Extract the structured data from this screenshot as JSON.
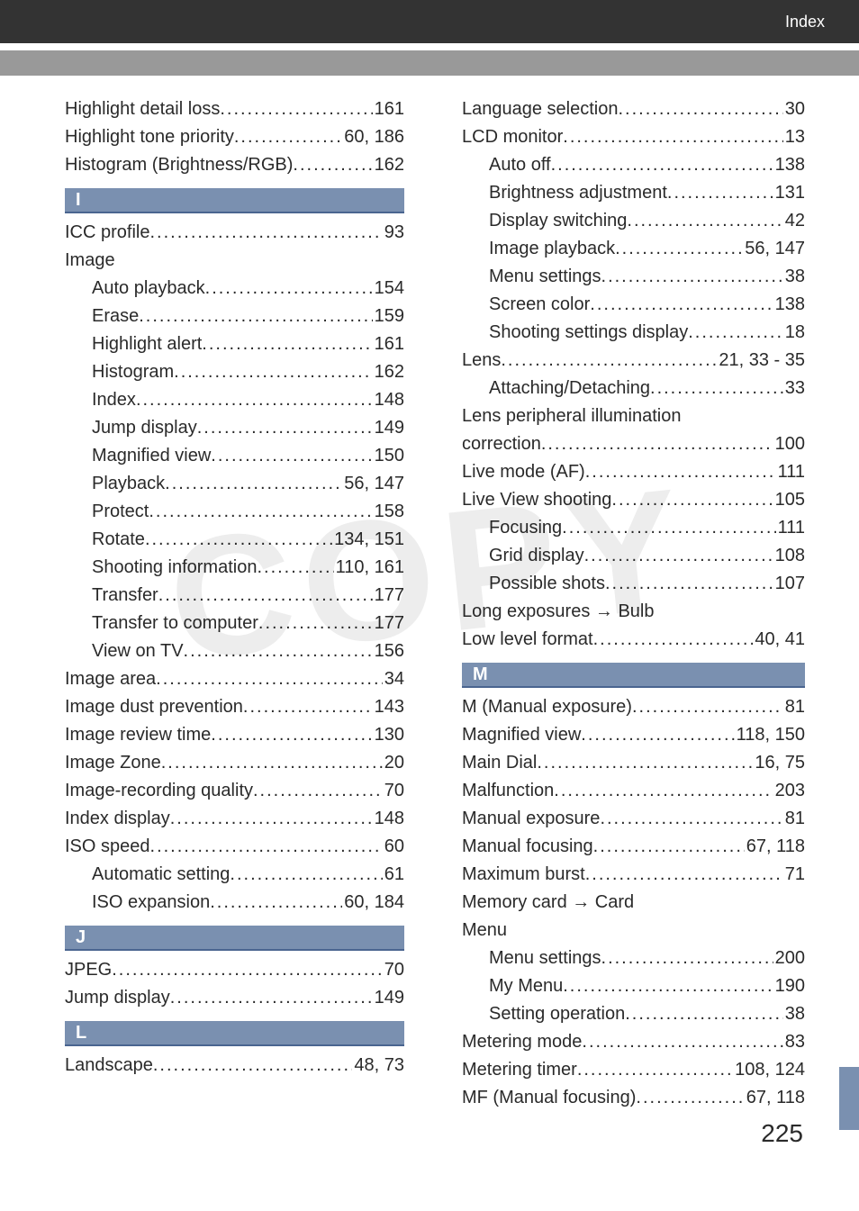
{
  "header": {
    "title": "Index"
  },
  "pageNumber": "225",
  "watermark": "COPY",
  "sections": {
    "I": "I",
    "J": "J",
    "L": "L",
    "M": "M"
  },
  "left": {
    "pre": [
      {
        "label": "Highlight detail loss",
        "pages": "161"
      },
      {
        "label": "Highlight tone priority",
        "pages": "60, 186"
      },
      {
        "label": "Histogram (Brightness/RGB)",
        "pages": "162"
      }
    ],
    "i": [
      {
        "label": "ICC profile",
        "pages": "93"
      },
      {
        "label": "Image",
        "pages": "",
        "nodots": true
      },
      {
        "label": "Auto playback",
        "pages": "154",
        "indent": true
      },
      {
        "label": "Erase",
        "pages": "159",
        "indent": true
      },
      {
        "label": "Highlight alert",
        "pages": "161",
        "indent": true
      },
      {
        "label": "Histogram",
        "pages": "162",
        "indent": true
      },
      {
        "label": "Index",
        "pages": "148",
        "indent": true
      },
      {
        "label": "Jump display",
        "pages": "149",
        "indent": true
      },
      {
        "label": "Magnified view",
        "pages": "150",
        "indent": true
      },
      {
        "label": "Playback",
        "pages": "56, 147",
        "indent": true
      },
      {
        "label": "Protect",
        "pages": "158",
        "indent": true
      },
      {
        "label": "Rotate",
        "pages": "134, 151",
        "indent": true
      },
      {
        "label": "Shooting information",
        "pages": "110, 161",
        "indent": true
      },
      {
        "label": "Transfer",
        "pages": "177",
        "indent": true
      },
      {
        "label": "Transfer to computer",
        "pages": "177",
        "indent": true
      },
      {
        "label": "View on TV",
        "pages": "156",
        "indent": true
      },
      {
        "label": "Image area",
        "pages": "34"
      },
      {
        "label": "Image dust prevention",
        "pages": "143"
      },
      {
        "label": "Image review time",
        "pages": "130"
      },
      {
        "label": "Image Zone",
        "pages": "20"
      },
      {
        "label": "Image-recording quality",
        "pages": "70"
      },
      {
        "label": "Index display",
        "pages": "148"
      },
      {
        "label": "ISO speed",
        "pages": "60"
      },
      {
        "label": "Automatic setting",
        "pages": "61",
        "indent": true
      },
      {
        "label": "ISO expansion",
        "pages": "60, 184",
        "indent": true
      }
    ],
    "j": [
      {
        "label": "JPEG",
        "pages": "70"
      },
      {
        "label": "Jump display",
        "pages": "149"
      }
    ],
    "l": [
      {
        "label": "Landscape",
        "pages": "48, 73"
      }
    ]
  },
  "right": {
    "top": [
      {
        "label": "Language selection",
        "pages": "30"
      },
      {
        "label": "LCD monitor",
        "pages": "13"
      },
      {
        "label": "Auto off",
        "pages": "138",
        "indent": true
      },
      {
        "label": "Brightness adjustment",
        "pages": "131",
        "indent": true
      },
      {
        "label": "Display switching",
        "pages": "42",
        "indent": true
      },
      {
        "label": "Image playback",
        "pages": "56, 147",
        "indent": true
      },
      {
        "label": "Menu settings",
        "pages": "38",
        "indent": true
      },
      {
        "label": "Screen color",
        "pages": "138",
        "indent": true
      },
      {
        "label": "Shooting settings display",
        "pages": "18",
        "indent": true
      },
      {
        "label": "Lens",
        "pages": "21, 33 - 35"
      },
      {
        "label": "Attaching/Detaching",
        "pages": "33",
        "indent": true
      },
      {
        "label": "Lens peripheral illumination",
        "pages": "",
        "nodots": true
      },
      {
        "label": "correction",
        "pages": "100"
      },
      {
        "label": "Live mode (AF)",
        "pages": "111"
      },
      {
        "label": "Live View shooting",
        "pages": "105"
      },
      {
        "label": "Focusing",
        "pages": "111",
        "indent": true
      },
      {
        "label": "Grid display",
        "pages": "108",
        "indent": true
      },
      {
        "label": "Possible shots",
        "pages": "107",
        "indent": true
      },
      {
        "label": "Long exposures → Bulb",
        "pages": "",
        "nodots": true
      },
      {
        "label": "Low level format",
        "pages": "40, 41"
      }
    ],
    "m": [
      {
        "label": "M (Manual exposure)",
        "pages": "81"
      },
      {
        "label": "Magnified view",
        "pages": "118, 150"
      },
      {
        "label": "Main Dial",
        "pages": "16, 75"
      },
      {
        "label": "Malfunction",
        "pages": "203"
      },
      {
        "label": "Manual exposure",
        "pages": "81"
      },
      {
        "label": "Manual focusing",
        "pages": "67, 118"
      },
      {
        "label": "Maximum burst",
        "pages": "71"
      },
      {
        "label": "Memory card → Card",
        "pages": "",
        "nodots": true
      },
      {
        "label": "Menu",
        "pages": "",
        "nodots": true
      },
      {
        "label": "Menu settings",
        "pages": "200",
        "indent": true
      },
      {
        "label": "My Menu",
        "pages": "190",
        "indent": true
      },
      {
        "label": "Setting operation",
        "pages": "38",
        "indent": true
      },
      {
        "label": "Metering mode",
        "pages": "83"
      },
      {
        "label": "Metering timer",
        "pages": "108, 124"
      },
      {
        "label": "MF (Manual focusing)",
        "pages": "67, 118"
      }
    ]
  }
}
